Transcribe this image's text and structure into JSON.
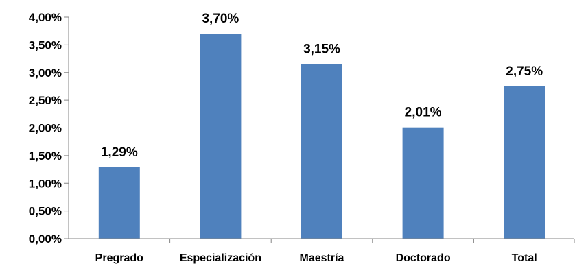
{
  "chart_data": {
    "type": "bar",
    "categories": [
      "Pregrado",
      "Especialización",
      "Maestría",
      "Doctorado",
      "Total"
    ],
    "values": [
      1.29,
      3.7,
      3.15,
      2.01,
      2.75
    ],
    "data_labels": [
      "1,29%",
      "3,70%",
      "3,15%",
      "2,01%",
      "2,75%"
    ],
    "y_ticks": [
      "0,00%",
      "0,50%",
      "1,00%",
      "1,50%",
      "2,00%",
      "2,50%",
      "3,00%",
      "3,50%",
      "4,00%"
    ],
    "y_tick_values": [
      0,
      0.5,
      1.0,
      1.5,
      2.0,
      2.5,
      3.0,
      3.5,
      4.0
    ],
    "ylim": [
      0,
      4.0
    ],
    "title": "",
    "xlabel": "",
    "ylabel": "",
    "grid": false,
    "legend": "none",
    "bar_color": "#4F81BD",
    "axis_color": "#868686"
  }
}
